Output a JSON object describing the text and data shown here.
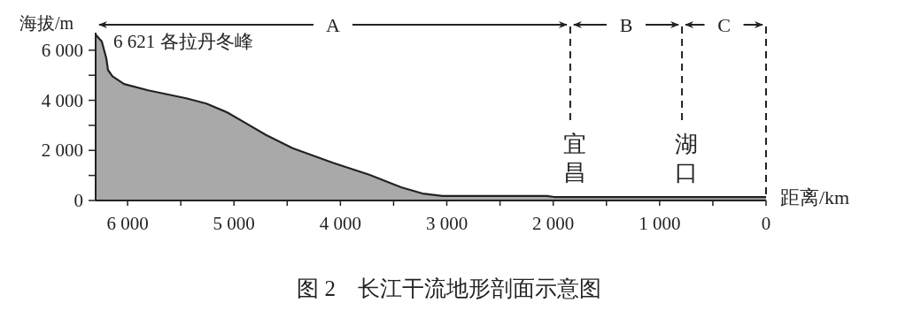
{
  "chart_data": {
    "type": "area",
    "title": "图 2　长江干流地形剖面示意图",
    "xlabel": "距离/km",
    "ylabel": "海拔/m",
    "x": [
      6300,
      6242,
      6200,
      6184,
      6142,
      6033,
      5807,
      5450,
      5260,
      5060,
      4890,
      4700,
      4450,
      4060,
      3730,
      3430,
      3230,
      3040,
      2060,
      1990,
      0
    ],
    "values": [
      6621,
      6350,
      5680,
      5210,
      4960,
      4650,
      4400,
      4080,
      3870,
      3510,
      3090,
      2620,
      2090,
      1490,
      1030,
      530,
      280,
      180,
      180,
      140,
      140
    ],
    "color": "#a9a9a9",
    "xlim": [
      6300,
      0
    ],
    "ylim": [
      0,
      6700
    ],
    "xticks": [
      {
        "value": 6000,
        "label": "6 000"
      },
      {
        "value": 5500,
        "label": null
      },
      {
        "value": 5000,
        "label": "5 000"
      },
      {
        "value": 4500,
        "label": null
      },
      {
        "value": 4000,
        "label": "4 000"
      },
      {
        "value": 3500,
        "label": null
      },
      {
        "value": 3000,
        "label": "3 000"
      },
      {
        "value": 2500,
        "label": null
      },
      {
        "value": 2000,
        "label": "2 000"
      },
      {
        "value": 1500,
        "label": null
      },
      {
        "value": 1000,
        "label": "1 000"
      },
      {
        "value": 500,
        "label": null
      },
      0
    ],
    "yticks": [
      0,
      {
        "value": 1000,
        "label": null
      },
      {
        "value": 2000,
        "label": "2 000"
      },
      {
        "value": 3000,
        "label": null
      },
      {
        "value": 4000,
        "label": "4 000"
      },
      {
        "value": 5000,
        "label": null
      },
      {
        "value": 6000,
        "label": "6 000"
      }
    ],
    "ref_lines": [
      {
        "axis": "x",
        "value": 1840,
        "label": "宜昌",
        "color": "#222222",
        "line_style": "dashed"
      },
      {
        "axis": "x",
        "value": 790,
        "label": "湖口",
        "color": "#222222",
        "line_style": "dashed"
      },
      {
        "axis": "x",
        "value": 0,
        "label": null,
        "color": "#222222",
        "line_style": "dashed"
      }
    ],
    "annotations": [
      {
        "text": "6 621  各拉丹冬峰",
        "x": 6300,
        "y": 6621
      },
      "A",
      "B",
      "C"
    ]
  }
}
